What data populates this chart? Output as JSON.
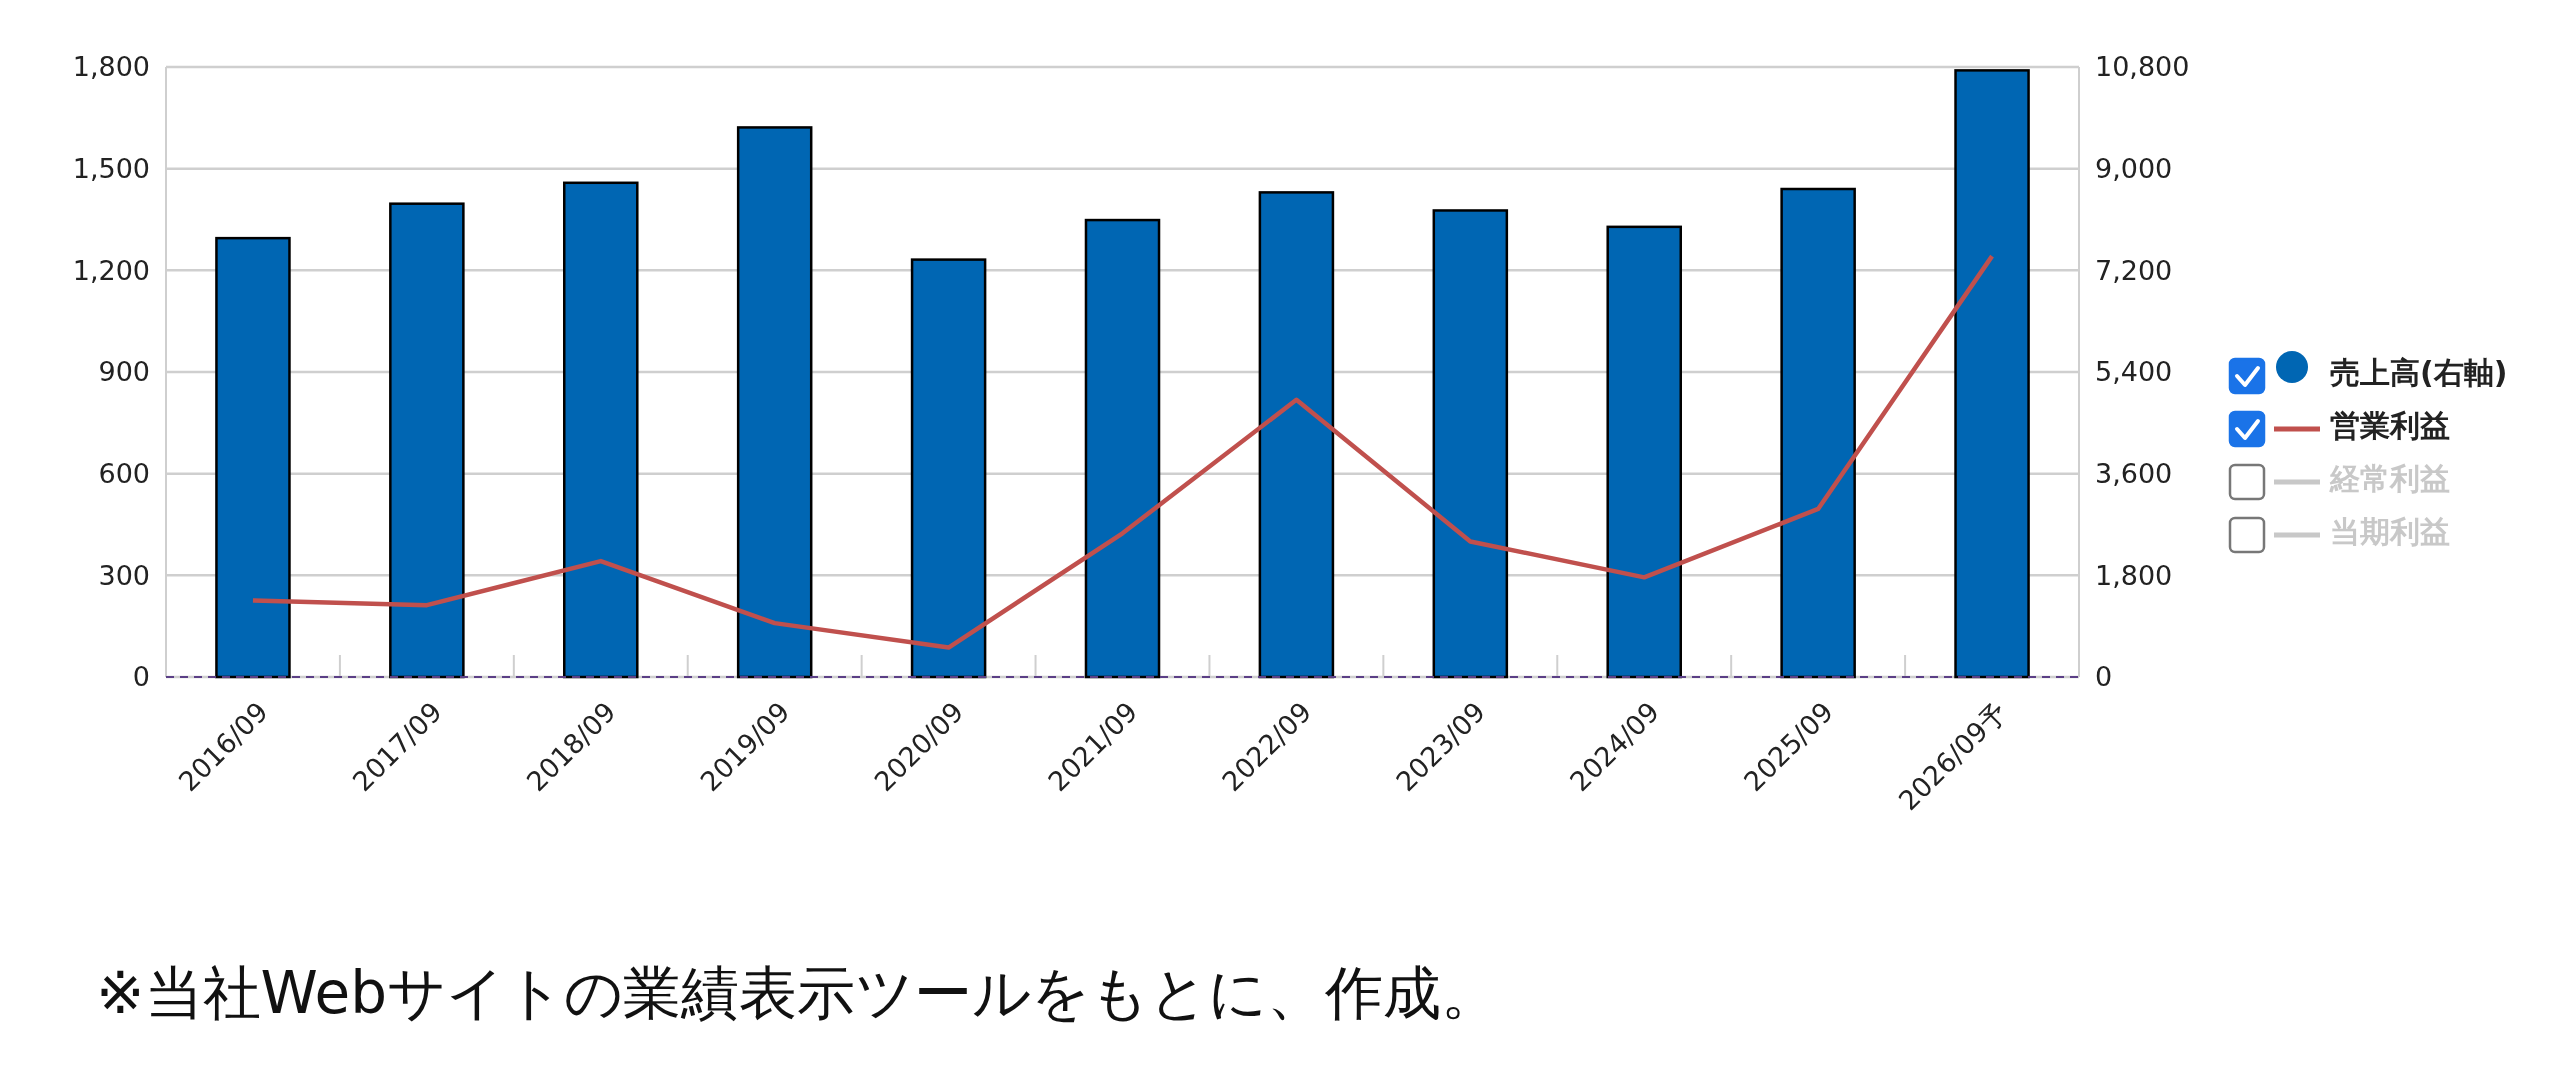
{
  "chart_data": {
    "type": "bar",
    "categories": [
      "2016/09",
      "2017/09",
      "2018/09",
      "2019/09",
      "2020/09",
      "2021/09",
      "2022/09",
      "2023/09",
      "2024/09",
      "2025/09",
      "2026/09予"
    ],
    "series": [
      {
        "name": "売上高(右軸)",
        "axis": "y2",
        "color": "#0066b3",
        "values": [
          7770,
          8380,
          8750,
          9730,
          7390,
          8090,
          8580,
          8260,
          7970,
          8640,
          10740
        ]
      },
      {
        "name": "営業利益",
        "type": "line",
        "color": "#c0504d",
        "values": [
          226,
          212,
          342,
          159,
          87,
          424,
          818,
          400,
          294,
          496,
          1242
        ]
      },
      {
        "name": "経常利益",
        "type": "line",
        "color": "#c8c8c8",
        "values": [
          null,
          null,
          null,
          null,
          null,
          null,
          null,
          null,
          null,
          null,
          null
        ]
      },
      {
        "name": "当期利益",
        "type": "line",
        "color": "#c8c8c8",
        "values": [
          null,
          null,
          null,
          null,
          null,
          null,
          null,
          null,
          null,
          null,
          null
        ]
      }
    ],
    "ylim": [
      0,
      1800
    ],
    "yticks": [
      0,
      {
        "value": 300,
        "label": "300"
      },
      {
        "value": 600,
        "label": "600"
      },
      {
        "value": 900,
        "label": "900"
      },
      {
        "value": 1200,
        "label": "1,200"
      },
      {
        "value": 1500,
        "label": "1,500"
      },
      {
        "value": 1800,
        "label": "1,800"
      }
    ],
    "y2lim": [
      0,
      10800
    ],
    "y2ticks": [
      0,
      {
        "value": 1800,
        "label": "1,800"
      },
      {
        "value": 3600,
        "label": "3,600"
      },
      {
        "value": 5400,
        "label": "5,400"
      },
      {
        "value": 7200,
        "label": "7,200"
      },
      {
        "value": 9000,
        "label": "9,000"
      },
      {
        "value": 10800,
        "label": "10,800"
      }
    ],
    "grid": "y",
    "legend": "right",
    "marker": "none",
    "line_style": "solid",
    "annotations": [
      "※当社Webサイトの業績表示ツールをもとに、作成。"
    ]
  }
}
